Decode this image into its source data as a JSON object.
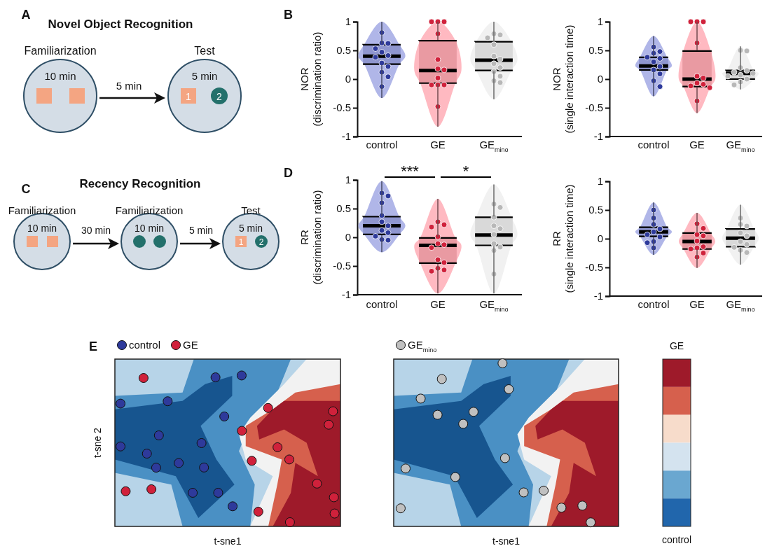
{
  "chart_data": [
    {
      "type": "other",
      "title": "Novel Object Recognition",
      "annotations": [
        "A",
        "Familiarization",
        "Test",
        "10 min",
        "5 min",
        "5 min",
        "1",
        "2"
      ]
    },
    {
      "type": "other",
      "title": "Recency Recognition",
      "annotations": [
        "C",
        "Familiarization",
        "Familiarization",
        "Test",
        "10 min",
        "30 min",
        "10 min",
        "5 min",
        "5 min",
        "1",
        "2"
      ]
    },
    {
      "type": "box",
      "categories": [
        "control",
        "GE",
        "GE$_{mino}$"
      ],
      "ylabel": "NOR\n(discrimination ratio)",
      "ylim": [
        -1,
        1
      ],
      "yticks": [
        -1,
        -0.5,
        0,
        0.5,
        1
      ],
      "annotations": [
        "B"
      ],
      "colors": [
        "#8f96cf",
        "#e99aa2",
        "#d9d9d9"
      ],
      "boxes": [
        {
          "low": -0.33,
          "q1": 0.26,
          "median": 0.4,
          "q3": 0.6,
          "high": 1.0
        },
        {
          "low": -0.83,
          "q1": -0.07,
          "median": 0.15,
          "q3": 0.67,
          "high": 1.0
        },
        {
          "low": -0.35,
          "q1": 0.15,
          "median": 0.33,
          "q3": 0.65,
          "high": 1.0
        }
      ],
      "series": [
        {
          "type": "scatter",
          "color": "#2e3a9b",
          "x": [
            "control",
            "control",
            "control",
            "control",
            "control",
            "control",
            "control",
            "control",
            "control",
            "control",
            "control",
            "control"
          ],
          "values": [
            0.81,
            0.63,
            0.62,
            0.53,
            0.47,
            0.41,
            0.38,
            0.28,
            0.22,
            0.12,
            0.04,
            -0.13
          ]
        },
        {
          "type": "scatter",
          "color": "#d0213b",
          "x": [
            "GE",
            "GE",
            "GE",
            "GE",
            "GE",
            "GE",
            "GE",
            "GE",
            "GE",
            "GE",
            "GE",
            "GE"
          ],
          "values": [
            1.0,
            1.0,
            1.0,
            0.79,
            0.34,
            0.18,
            0.16,
            0.02,
            -0.1,
            -0.1,
            -0.1,
            -0.48
          ]
        },
        {
          "type": "scatter",
          "color": "#b8b8b8",
          "x": [
            "GE$_{mino}$",
            "GE$_{mino}$",
            "GE$_{mino}$",
            "GE$_{mino}$",
            "GE$_{mino}$",
            "GE$_{mino}$",
            "GE$_{mino}$",
            "GE$_{mino}$",
            "GE$_{mino}$",
            "GE$_{mino}$",
            "GE$_{mino}$",
            "GE$_{mino}$"
          ],
          "values": [
            0.79,
            0.77,
            0.72,
            0.6,
            0.4,
            0.35,
            0.27,
            0.2,
            0.13,
            0.05,
            -0.03,
            -0.06
          ]
        }
      ]
    },
    {
      "type": "box",
      "categories": [
        "control",
        "GE",
        "GE$_{mino}$"
      ],
      "ylabel": "NOR\n(single interaction time)",
      "ylim": [
        -1,
        1
      ],
      "yticks": [
        -1,
        -0.5,
        0,
        0.5,
        1
      ],
      "colors": [
        "#8f96cf",
        "#e99aa2",
        "#d9d9d9"
      ],
      "boxes": [
        {
          "low": -0.3,
          "q1": 0.16,
          "median": 0.23,
          "q3": 0.38,
          "high": 0.75
        },
        {
          "low": -0.59,
          "q1": -0.13,
          "median": 0.0,
          "q3": 0.49,
          "high": 1.0
        },
        {
          "low": -0.18,
          "q1": 0.0,
          "median": 0.1,
          "q3": 0.15,
          "high": 0.57
        }
      ],
      "series": [
        {
          "type": "scatter",
          "color": "#2e3a9b",
          "x": [
            "control",
            "control",
            "control",
            "control",
            "control",
            "control",
            "control",
            "control",
            "control",
            "control",
            "control"
          ],
          "values": [
            0.56,
            0.48,
            0.45,
            0.38,
            0.36,
            0.3,
            0.22,
            0.16,
            0.09,
            -0.03,
            -0.13
          ]
        },
        {
          "type": "scatter",
          "color": "#d0213b",
          "x": [
            "GE",
            "GE",
            "GE",
            "GE",
            "GE",
            "GE",
            "GE",
            "GE",
            "GE",
            "GE",
            "GE"
          ],
          "values": [
            1.0,
            1.0,
            1.0,
            0.63,
            0.05,
            0.02,
            -0.07,
            -0.09,
            -0.12,
            -0.15,
            -0.38
          ]
        },
        {
          "type": "scatter",
          "color": "#b8b8b8",
          "x": [
            "GE$_{mino}$",
            "GE$_{mino}$",
            "GE$_{mino}$",
            "GE$_{mino}$",
            "GE$_{mino}$",
            "GE$_{mino}$",
            "GE$_{mino}$",
            "GE$_{mino}$",
            "GE$_{mino}$",
            "GE$_{mino}$",
            "GE$_{mino}$"
          ],
          "values": [
            0.5,
            0.49,
            0.2,
            0.15,
            0.12,
            0.1,
            0.07,
            0.05,
            0.0,
            -0.05,
            -0.1
          ]
        }
      ]
    },
    {
      "type": "box",
      "categories": [
        "control",
        "GE",
        "GE$_{mino}$"
      ],
      "ylabel": "RR\n(discrimination ratio)",
      "ylim": [
        -1,
        1
      ],
      "yticks": [
        -1,
        -0.5,
        0,
        0.5,
        1
      ],
      "annotations": [
        "D",
        "***",
        "*"
      ],
      "colors": [
        "#8f96cf",
        "#e99aa2",
        "#d9d9d9"
      ],
      "boxes": [
        {
          "low": -0.26,
          "q1": 0.05,
          "median": 0.2,
          "q3": 0.36,
          "high": 0.98
        },
        {
          "low": -0.98,
          "q1": -0.45,
          "median": -0.14,
          "q3": -0.01,
          "high": 0.67
        },
        {
          "low": -0.98,
          "q1": -0.14,
          "median": 0.04,
          "q3": 0.35,
          "high": 0.92
        }
      ],
      "series": [
        {
          "type": "scatter",
          "color": "#2e3a9b",
          "x": [
            "control",
            "control",
            "control",
            "control",
            "control",
            "control",
            "control",
            "control",
            "control",
            "control",
            "control"
          ],
          "values": [
            0.77,
            0.72,
            0.6,
            0.38,
            0.27,
            0.2,
            0.12,
            0.08,
            0.02,
            -0.04,
            -0.05
          ]
        },
        {
          "type": "scatter",
          "color": "#d0213b",
          "x": [
            "GE",
            "GE",
            "GE",
            "GE",
            "GE",
            "GE",
            "GE",
            "GE",
            "GE",
            "GE",
            "GE",
            "GE"
          ],
          "values": [
            0.27,
            0.22,
            0.18,
            0.01,
            -0.11,
            -0.13,
            -0.18,
            -0.39,
            -0.44,
            -0.54,
            -0.57,
            -0.59
          ]
        },
        {
          "type": "scatter",
          "color": "#b8b8b8",
          "x": [
            "GE$_{mino}$",
            "GE$_{mino}$",
            "GE$_{mino}$",
            "GE$_{mino}$",
            "GE$_{mino}$",
            "GE$_{mino}$",
            "GE$_{mino}$",
            "GE$_{mino}$",
            "GE$_{mino}$",
            "GE$_{mino}$"
          ],
          "values": [
            0.58,
            0.52,
            0.35,
            0.2,
            0.15,
            0.05,
            -0.11,
            -0.17,
            -0.23,
            -0.64
          ]
        }
      ]
    },
    {
      "type": "box",
      "categories": [
        "control",
        "GE",
        "GE$_{mino}$"
      ],
      "ylabel": "RR\n(single interaction time)",
      "ylim": [
        -1,
        1
      ],
      "yticks": [
        -1,
        -0.5,
        0,
        0.5,
        1
      ],
      "colors": [
        "#8f96cf",
        "#e99aa2",
        "#d9d9d9"
      ],
      "boxes": [
        {
          "low": -0.28,
          "q1": 0.04,
          "median": 0.12,
          "q3": 0.2,
          "high": 0.63
        },
        {
          "low": -0.51,
          "q1": -0.18,
          "median": -0.05,
          "q3": 0.1,
          "high": 0.45
        },
        {
          "low": -0.45,
          "q1": -0.14,
          "median": 0.01,
          "q3": 0.17,
          "high": 0.59
        }
      ],
      "series": [
        {
          "type": "scatter",
          "color": "#2e3a9b",
          "x": [
            "control",
            "control",
            "control",
            "control",
            "control",
            "control",
            "control",
            "control",
            "control",
            "control"
          ],
          "values": [
            0.5,
            0.36,
            0.25,
            0.17,
            0.12,
            0.07,
            0.03,
            -0.05,
            -0.07,
            -0.16
          ]
        },
        {
          "type": "scatter",
          "color": "#d0213b",
          "x": [
            "GE",
            "GE",
            "GE",
            "GE",
            "GE",
            "GE",
            "GE",
            "GE",
            "GE",
            "GE"
          ],
          "values": [
            0.26,
            0.18,
            0.07,
            0.05,
            -0.04,
            -0.14,
            -0.16,
            -0.18,
            -0.25,
            -0.32
          ]
        },
        {
          "type": "scatter",
          "color": "#b8b8b8",
          "x": [
            "GE$_{mino}$",
            "GE$_{mino}$",
            "GE$_{mino}$",
            "GE$_{mino}$",
            "GE$_{mino}$",
            "GE$_{mino}$",
            "GE$_{mino}$",
            "GE$_{mino}$",
            "GE$_{mino}$",
            "GE$_{mino}$"
          ],
          "values": [
            0.36,
            0.25,
            0.22,
            0.1,
            0.05,
            -0.05,
            -0.1,
            -0.15,
            -0.2,
            -0.24
          ]
        }
      ]
    },
    {
      "type": "other",
      "xlabel": "t-sne1",
      "ylabel": "t-sne 2",
      "annotations": [
        "E",
        "control",
        "GE"
      ],
      "colors": [
        "#2e3a9b",
        "#d0213b"
      ]
    },
    {
      "type": "other",
      "xlabel": "t-sne1",
      "annotations": [
        "GE$_{mino}$"
      ],
      "colors": [
        "#c0c0c0"
      ]
    },
    {
      "type": "other",
      "annotations": [
        "GE",
        "control"
      ],
      "colors": [
        "#9e1a2a",
        "#d6604d",
        "#f7dccb",
        "#d4e3ef",
        "#6aa7d0",
        "#2166ac"
      ]
    }
  ]
}
